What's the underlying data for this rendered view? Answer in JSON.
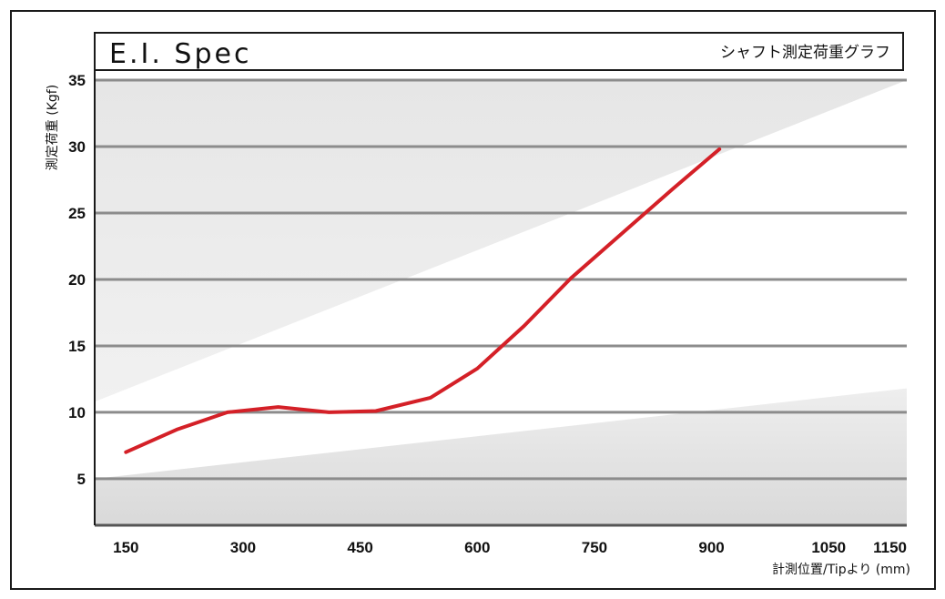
{
  "chart_data": {
    "type": "line",
    "title": "E.I. Spec",
    "subtitle": "シャフト測定荷重グラフ",
    "xlabel": "計測位置/Tipより (mm)",
    "ylabel": "測定荷重 (Kgf)",
    "x_ticks": [
      "150",
      "300",
      "450",
      "600",
      "750",
      "900",
      "1050",
      "1150"
    ],
    "y_ticks": [
      "5",
      "10",
      "15",
      "20",
      "25",
      "30",
      "35"
    ],
    "xlim": [
      110,
      1150
    ],
    "ylim": [
      1.5,
      35
    ],
    "grid": true,
    "series": [
      {
        "color": "#d42027",
        "points": [
          [
            150,
            7.0
          ],
          [
            215,
            8.7
          ],
          [
            280,
            10.0
          ],
          [
            345,
            10.4
          ],
          [
            410,
            10.0
          ],
          [
            470,
            10.1
          ],
          [
            540,
            11.1
          ],
          [
            600,
            13.3
          ],
          [
            660,
            16.5
          ],
          [
            720,
            20.1
          ],
          [
            790,
            23.7
          ],
          [
            850,
            26.8
          ],
          [
            910,
            29.8
          ]
        ]
      }
    ],
    "bands": {
      "upper_region_color": "#e3e3e3",
      "lower_region_color": "#dcdcdc",
      "upper_boundary": [
        [
          110,
          10.8
        ],
        [
          1150,
          35.0
        ]
      ],
      "lower_boundary": [
        [
          110,
          5.0
        ],
        [
          1150,
          11.8
        ]
      ]
    }
  }
}
